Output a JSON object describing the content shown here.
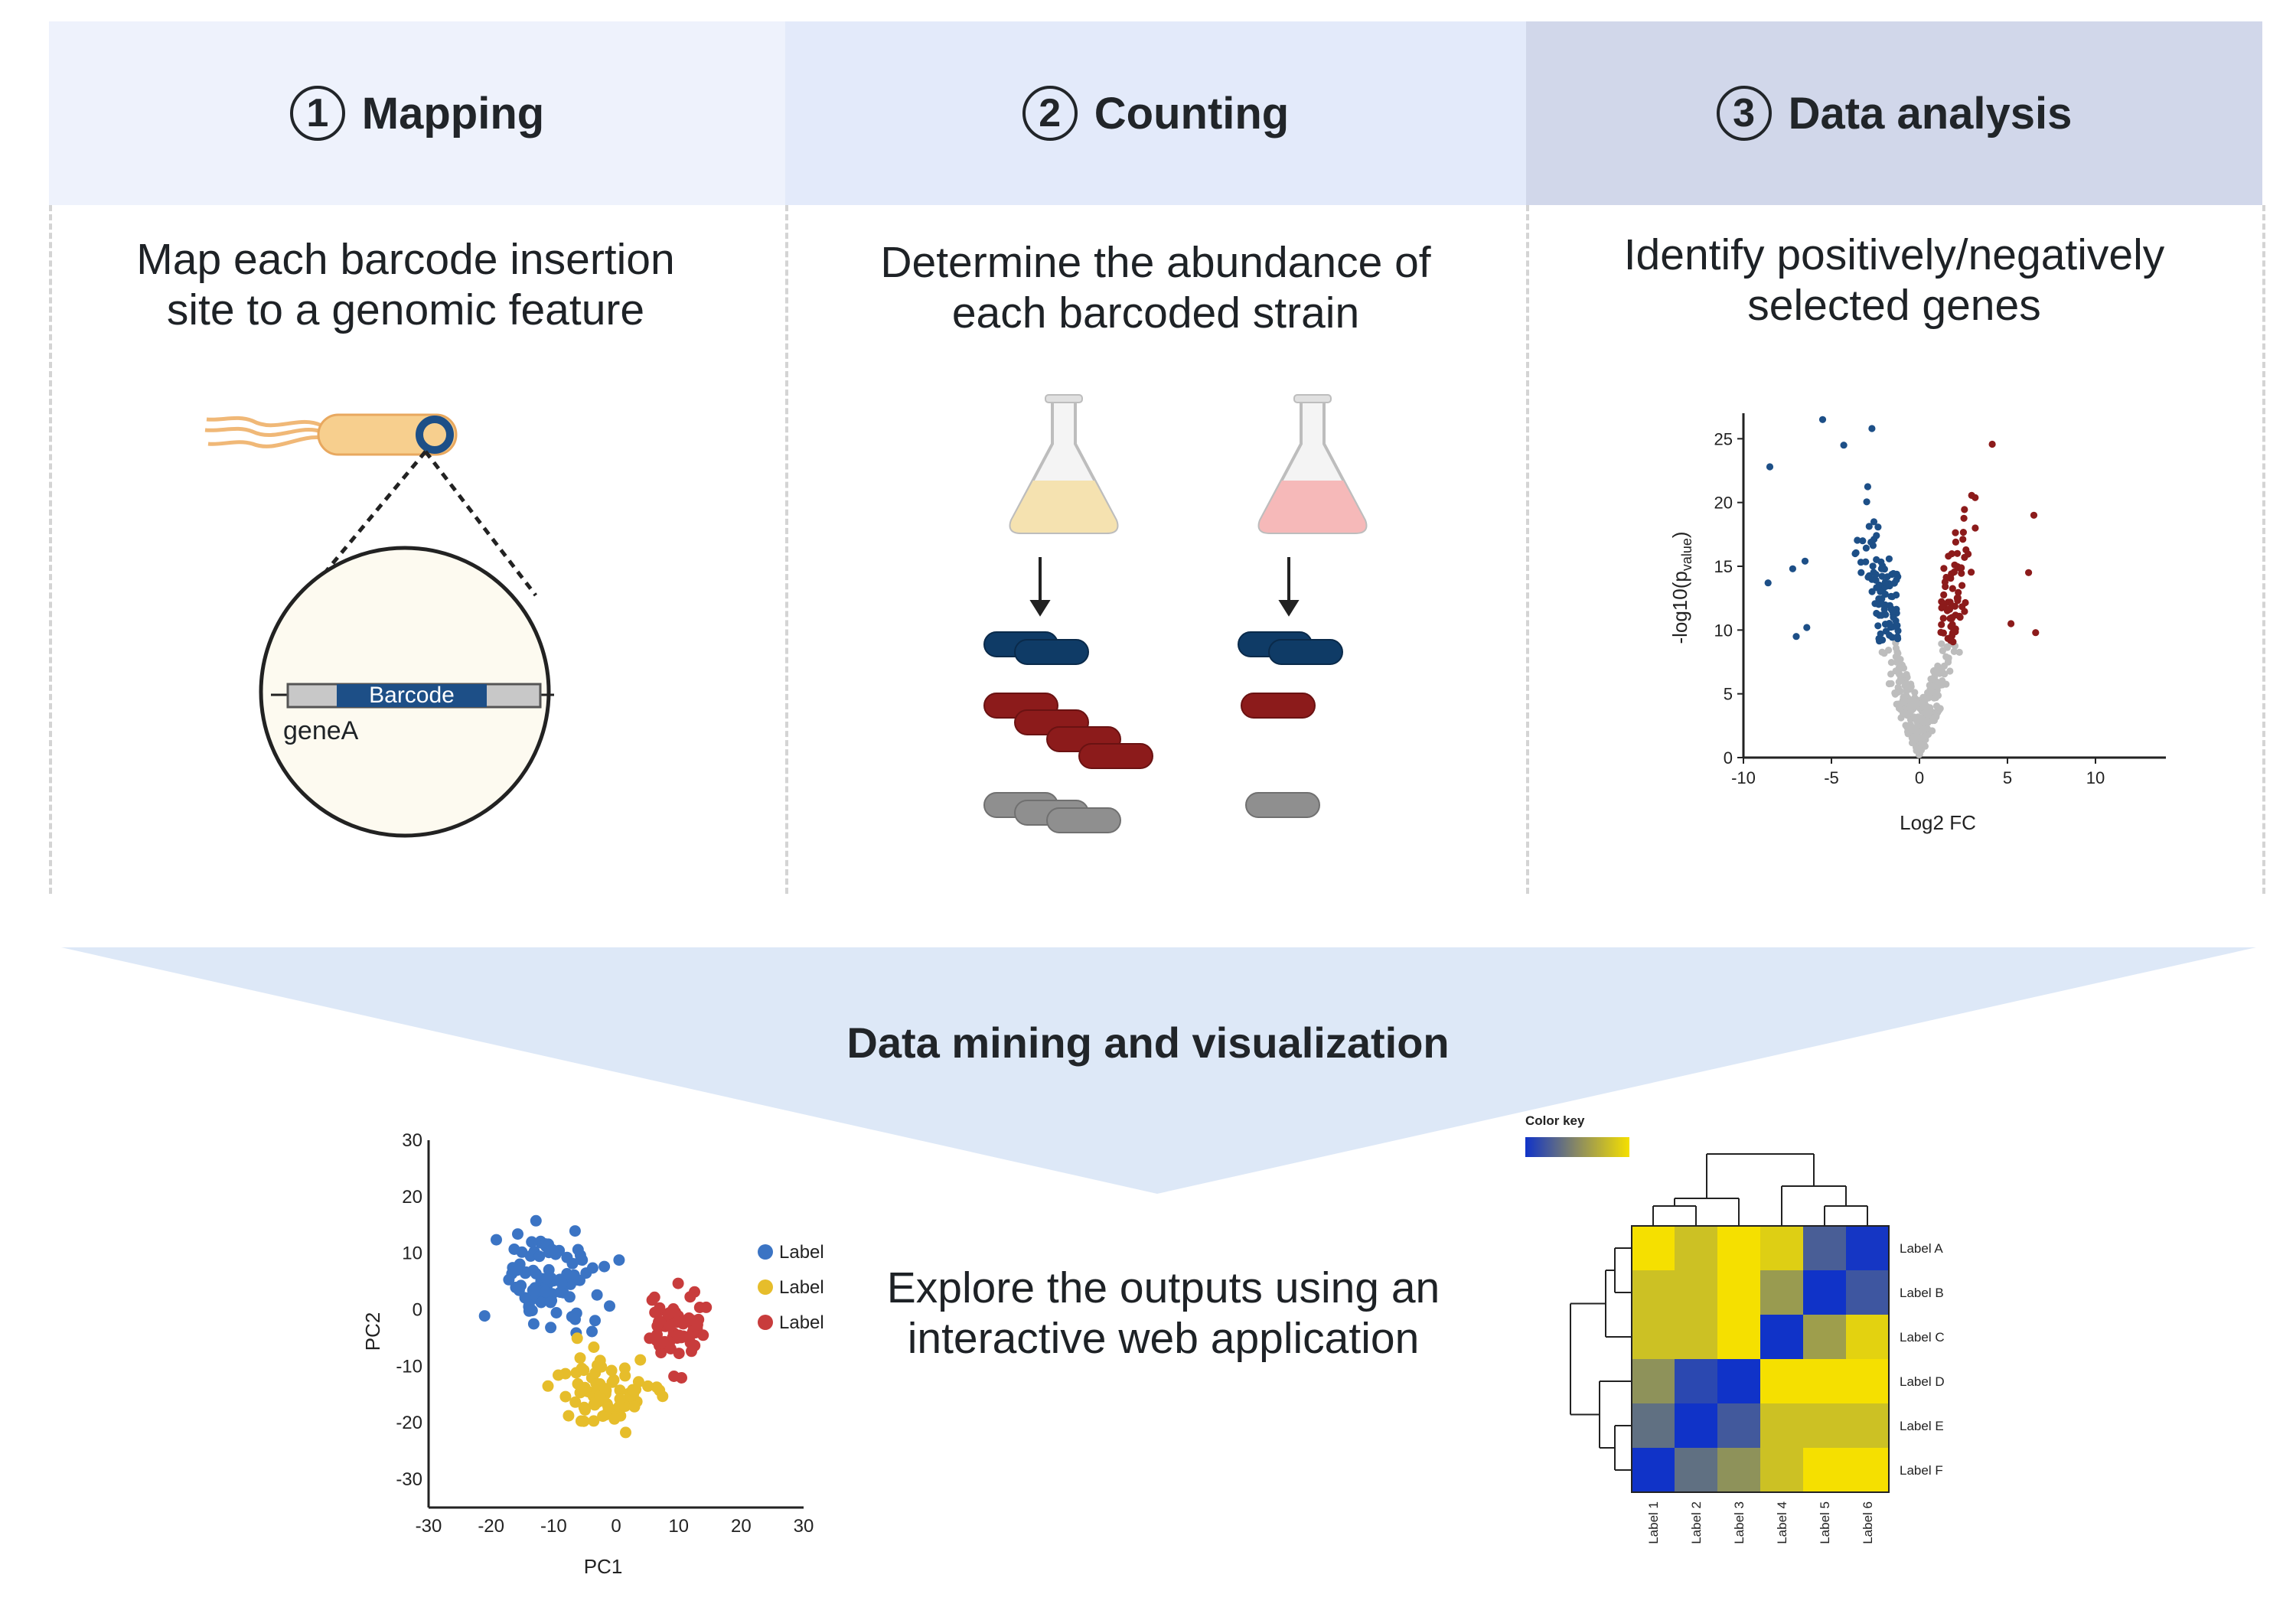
{
  "steps": [
    {
      "number": "1",
      "title": "Mapping",
      "description_line1": "Map each barcode insertion",
      "description_line2": "site to a genomic feature"
    },
    {
      "number": "2",
      "title": "Counting",
      "description_line1": "Determine the abundance of",
      "description_line2": "each barcoded strain"
    },
    {
      "number": "3",
      "title": "Data analysis",
      "description_line1": "Identify positively/negatively",
      "description_line2": "selected genes"
    }
  ],
  "mapping": {
    "barcode_label": "Barcode",
    "gene_label": "geneA"
  },
  "volcano": {
    "xlabel": "Log2 FC",
    "ylabel_prefix": "-log10(p",
    "ylabel_sub": "value",
    "ylabel_suffix": ")",
    "x_ticks": [
      "-10",
      "-5",
      "0",
      "5",
      "10"
    ],
    "y_ticks": [
      "0",
      "5",
      "10",
      "15",
      "20",
      "25"
    ],
    "colors": {
      "negative": "#1d4f87",
      "positive": "#8c1b1b",
      "neutral": "#bdbdbd"
    }
  },
  "bottom": {
    "title": "Data mining and visualization",
    "explore_line1": "Explore the outputs using an",
    "explore_line2": "interactive web application"
  },
  "pca": {
    "xlabel": "PC1",
    "ylabel": "PC2",
    "x_ticks": [
      "-30",
      "-20",
      "-10",
      "0",
      "10",
      "20",
      "30"
    ],
    "y_ticks": [
      "30",
      "20",
      "10",
      "0",
      "-10",
      "-20",
      "-30"
    ],
    "legend": [
      {
        "label": "Label",
        "color": "#3b74c4"
      },
      {
        "label": "Label",
        "color": "#e6bd2b"
      },
      {
        "label": "Label",
        "color": "#c83c3c"
      }
    ]
  },
  "heatmap": {
    "color_key_label": "Color key",
    "row_labels": [
      "Label A",
      "Label B",
      "Label C",
      "Label D",
      "Label E",
      "Label F"
    ],
    "col_labels": [
      "Label 1",
      "Label 2",
      "Label 3",
      "Label 4",
      "Label 5",
      "Label 6"
    ],
    "colors": {
      "low": "#1033c8",
      "high": "#f5e000"
    }
  }
}
